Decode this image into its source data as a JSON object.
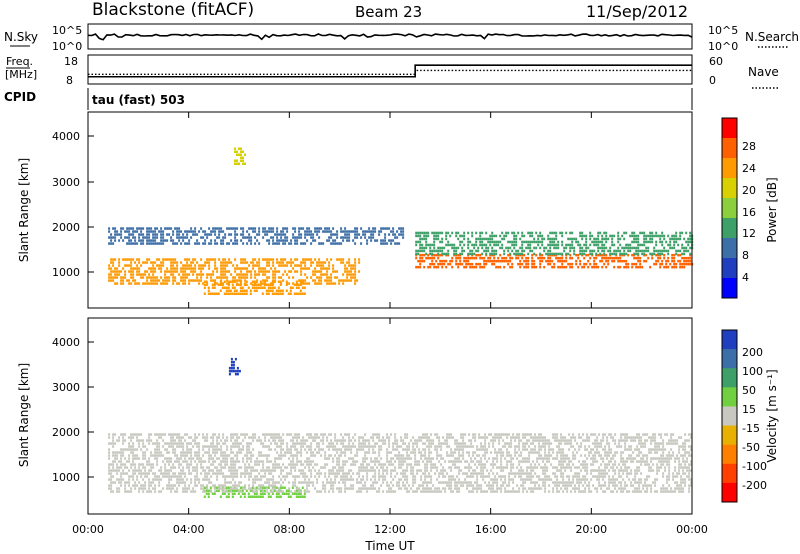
{
  "header": {
    "station": "Blackstone (fitACF)",
    "beam": "Beam 23",
    "date": "11/Sep/2012"
  },
  "summary": {
    "nsky_label": "N.Sky",
    "nsky_ticks": [
      "10^5",
      "10^0"
    ],
    "nsearch_label": "N.Search",
    "freq_label_1": "Freq.",
    "freq_label_2": "[MHz]",
    "freq_ticks": [
      "18",
      "8"
    ],
    "nave_ticks": [
      "60",
      "0"
    ],
    "nave_label": "Nave",
    "cpid_label": "CPID",
    "cpid_text": "tau (fast) 503"
  },
  "panels": {
    "ylabel": "Slant Range [km]",
    "ytick_labels": [
      "4000",
      "3000",
      "2000",
      "1000"
    ],
    "xlabel": "Time UT",
    "xtick_labels": [
      "00:00",
      "04:00",
      "08:00",
      "12:00",
      "16:00",
      "20:00",
      "00:00"
    ]
  },
  "power_scale": {
    "label": "Power [dB]",
    "tick_labels": [
      "28",
      "24",
      "20",
      "16",
      "12",
      "8",
      "4"
    ],
    "colors": [
      "#ff0000",
      "#ff6000",
      "#ff9a00",
      "#d8d000",
      "#8ccf3c",
      "#3f9f68",
      "#3c6fa8",
      "#1f3fbf",
      "#0000ff"
    ]
  },
  "velocity_scale": {
    "label": "Velocity",
    "unit": "[m s⁻¹]",
    "tick_labels": [
      "200",
      "100",
      "50",
      "15",
      "-15",
      "-50",
      "-100",
      "-200"
    ],
    "colors": [
      "#1f3fbf",
      "#3c6fa8",
      "#3f9f68",
      "#70d040",
      "#c8c8c0",
      "#e8b000",
      "#ff8000",
      "#ff4000",
      "#ff0000"
    ]
  },
  "chart_data": {
    "type": "heatmap",
    "title": "Blackstone (fitACF)",
    "xlabel": "Time UT",
    "ylabel": "Slant Range [km]",
    "x_range_hours": [
      0,
      24
    ],
    "ylim_km": [
      180,
      4600
    ],
    "summary_series": {
      "nsky": "near constant ~10^3 with dips",
      "frequency_mhz": [
        {
          "t": 0,
          "f": 10.5
        },
        {
          "t": 13.0,
          "f": 14.5
        }
      ],
      "nave": [
        {
          "t": 0,
          "v": 20
        },
        {
          "t": 13.0,
          "v": 28
        }
      ]
    },
    "power_bands": [
      {
        "t0": 0.8,
        "t1": 10.8,
        "r0": 700,
        "r1": 1300,
        "value": 22
      },
      {
        "t0": 0.8,
        "t1": 12.5,
        "r0": 1600,
        "r1": 2000,
        "value": 10
      },
      {
        "t0": 13.0,
        "t1": 24.0,
        "r0": 1100,
        "r1": 1400,
        "value": 28
      },
      {
        "t0": 13.0,
        "t1": 24.0,
        "r0": 1400,
        "r1": 1900,
        "value": 12
      },
      {
        "t0": 4.6,
        "t1": 8.6,
        "r0": 500,
        "r1": 800,
        "value": 22
      },
      {
        "t0": 5.8,
        "t1": 6.2,
        "r0": 3400,
        "r1": 3800,
        "value": 20
      }
    ],
    "velocity_bands": [
      {
        "t0": 4.6,
        "t1": 8.6,
        "r0": 550,
        "r1": 800,
        "value": 40
      },
      {
        "t0": 5.6,
        "t1": 6.0,
        "r0": 3300,
        "r1": 3700,
        "value": 220
      },
      {
        "t0": 0.8,
        "t1": 24.0,
        "r0": 700,
        "r1": 2000,
        "value": 0
      }
    ]
  }
}
